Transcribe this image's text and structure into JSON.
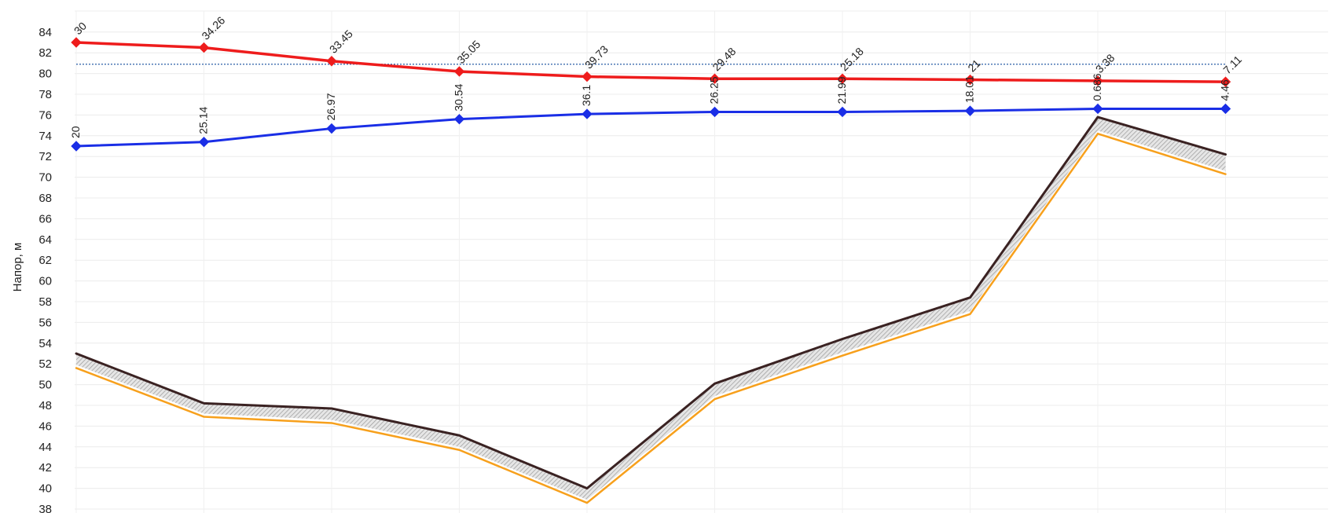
{
  "chart_data": {
    "type": "line",
    "ylabel": "Напор, м",
    "xlabel": "",
    "ylim": [
      38,
      85
    ],
    "yticks": [
      38,
      40,
      42,
      44,
      46,
      48,
      50,
      52,
      54,
      56,
      58,
      60,
      62,
      64,
      66,
      68,
      70,
      72,
      74,
      76,
      78,
      80,
      82,
      84
    ],
    "x": [
      0,
      1,
      2,
      3,
      4,
      5,
      6,
      7,
      8,
      9
    ],
    "grid": true,
    "reference_line": {
      "y": 80.9,
      "style": "dotted",
      "color": "#2b5fa8"
    },
    "series": [
      {
        "id": "red",
        "color": "#ee1c1c",
        "marker": "diamond",
        "values": [
          83.0,
          82.5,
          81.2,
          80.2,
          79.7,
          79.5,
          79.5,
          79.4,
          79.3,
          79.2
        ],
        "labels": [
          "30",
          "34.26",
          "33.45",
          "35.05",
          "39.73",
          "29.48",
          "25.18",
          "21",
          "3.38",
          "7.11"
        ]
      },
      {
        "id": "blue",
        "color": "#1a2ee6",
        "marker": "diamond",
        "values": [
          73.0,
          73.4,
          74.7,
          75.6,
          76.1,
          76.3,
          76.3,
          76.4,
          76.6,
          76.6
        ],
        "labels": [
          "20",
          "25.14",
          "26.97",
          "30.54",
          "36.1",
          "26.25",
          "21.99",
          "18.01",
          "0.686",
          "4.46"
        ]
      },
      {
        "id": "dark",
        "color": "#3a2222",
        "marker": "none",
        "values": [
          53.0,
          48.2,
          47.7,
          45.1,
          40.0,
          50.1,
          54.4,
          58.4,
          75.8,
          72.2
        ]
      },
      {
        "id": "orange",
        "color": "#f7a01c",
        "marker": "none",
        "values": [
          51.6,
          46.9,
          46.3,
          43.7,
          38.6,
          48.6,
          52.8,
          56.8,
          74.2,
          70.3
        ]
      }
    ]
  }
}
